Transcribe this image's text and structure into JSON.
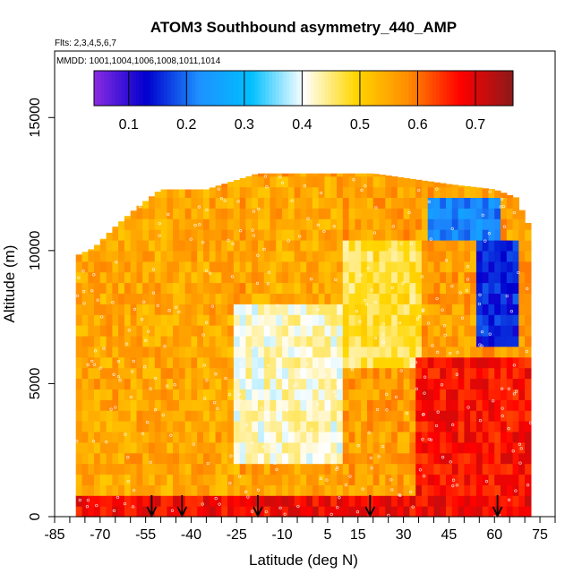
{
  "chart_data": {
    "type": "heatmap",
    "title": "ATOM3 Southbound asymmetry_440_AMP",
    "subtitle_flights": "Flts: 2,3,4,5,6,7",
    "subtitle_dates": "MMDD: 1001,1004,1006,1008,1011,1014",
    "xlabel": "Latitude (deg N)",
    "ylabel": "Altitude (m)",
    "xlim": [
      -85,
      80
    ],
    "ylim": [
      0,
      17500
    ],
    "x_tick_labels": [
      "-85",
      "-70",
      "-55",
      "-40",
      "-25",
      "-10",
      "5",
      "15",
      "30",
      "45",
      "60",
      "75"
    ],
    "x_ticks": [
      -85,
      -70,
      -55,
      -40,
      -25,
      -10,
      5,
      15,
      30,
      45,
      60,
      75
    ],
    "y_tick_labels": [
      "0",
      "5000",
      "10000",
      "15000"
    ],
    "y_ticks": [
      0,
      5000,
      10000,
      15000
    ],
    "colorbar": {
      "range": [
        0.04,
        0.765
      ],
      "tick_labels": [
        "0.1",
        "0.2",
        "0.3",
        "0.4",
        "0.5",
        "0.6",
        "0.7"
      ],
      "ticks": [
        0.1,
        0.2,
        0.3,
        0.4,
        0.5,
        0.6,
        0.7
      ],
      "colors": [
        "#8a2be2",
        "#0000cd",
        "#1e90ff",
        "#00bfff",
        "#ffffff",
        "#ffd700",
        "#ff8c00",
        "#ff0000",
        "#8b1a1a"
      ]
    },
    "arrows_latitude": [
      -53,
      -43,
      -18,
      19,
      61
    ],
    "data_extent": {
      "lat_min": -78,
      "lat_max": 72,
      "alt_max_by_lat": [
        [
          -78,
          9800
        ],
        [
          -72,
          10100
        ],
        [
          -65,
          10900
        ],
        [
          -58,
          11600
        ],
        [
          -50,
          12300
        ],
        [
          -35,
          12300
        ],
        [
          -18,
          12900
        ],
        [
          20,
          12900
        ],
        [
          45,
          12500
        ],
        [
          60,
          12300
        ],
        [
          67,
          12000
        ],
        [
          72,
          10800
        ]
      ]
    },
    "regions": [
      {
        "lat": [
          -78,
          -25
        ],
        "alt": [
          0,
          12300
        ],
        "value": 0.55
      },
      {
        "lat": [
          -25,
          10
        ],
        "alt": [
          2000,
          8000
        ],
        "value": 0.42
      },
      {
        "lat": [
          -20,
          10
        ],
        "alt": [
          8000,
          12900
        ],
        "value": 0.55
      },
      {
        "lat": [
          10,
          35
        ],
        "alt": [
          5500,
          10500
        ],
        "value": 0.47
      },
      {
        "lat": [
          35,
          72
        ],
        "alt": [
          0,
          6000
        ],
        "value": 0.67
      },
      {
        "lat": [
          55,
          68
        ],
        "alt": [
          6500,
          10500
        ],
        "value": 0.15
      },
      {
        "lat": [
          38,
          62
        ],
        "alt": [
          10500,
          12000
        ],
        "value": 0.22
      },
      {
        "lat": [
          -78,
          72
        ],
        "alt": [
          0,
          800
        ],
        "value": 0.68
      }
    ]
  }
}
